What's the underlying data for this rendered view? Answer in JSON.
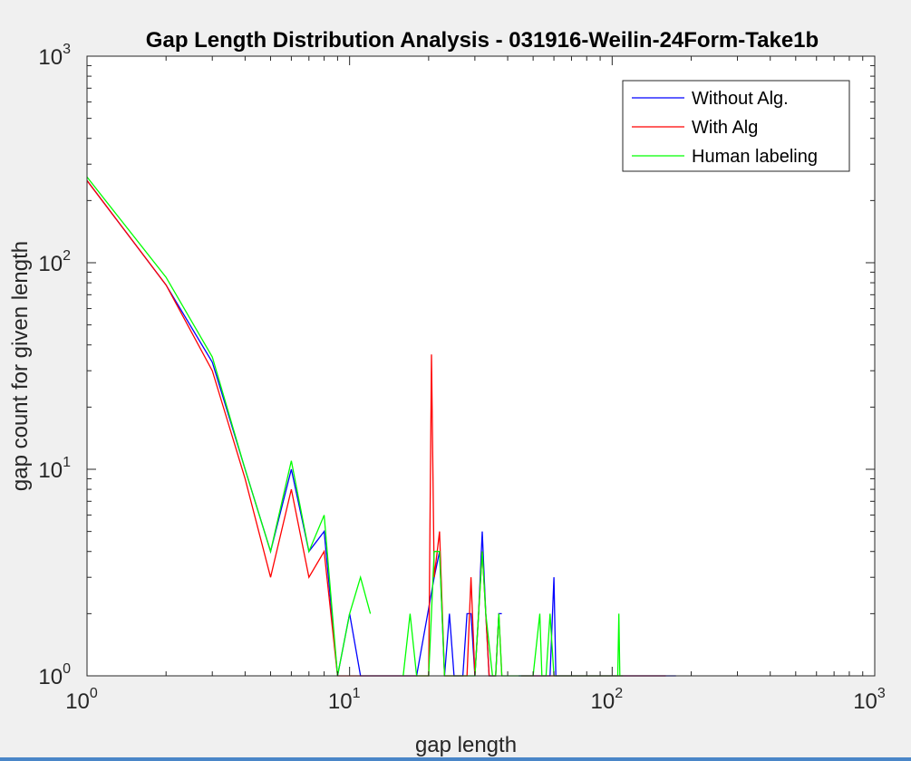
{
  "chart_data": {
    "type": "line",
    "title": "Gap Length Distribution Analysis - 031916-Weilin-24Form-Take1b",
    "xlabel": "gap length",
    "ylabel": "gap count for given length",
    "xscale": "log",
    "yscale": "log",
    "xlim": [
      1,
      1000
    ],
    "ylim": [
      1,
      1000
    ],
    "xticks": [
      1,
      10,
      100,
      1000
    ],
    "yticks": [
      1,
      10,
      100,
      1000
    ],
    "xtick_labels": [
      {
        "base": "10",
        "exp": "0"
      },
      {
        "base": "10",
        "exp": "1"
      },
      {
        "base": "10",
        "exp": "2"
      },
      {
        "base": "10",
        "exp": "3"
      }
    ],
    "ytick_labels": [
      {
        "base": "10",
        "exp": "0"
      },
      {
        "base": "10",
        "exp": "1"
      },
      {
        "base": "10",
        "exp": "2"
      },
      {
        "base": "10",
        "exp": "3"
      }
    ],
    "grid": false,
    "legend": "top-right",
    "series": [
      {
        "name": "Without Alg.",
        "color": "#0000ff",
        "segments": [
          [
            [
              1,
              250
            ],
            [
              2,
              78
            ],
            [
              3,
              33
            ],
            [
              4,
              10
            ],
            [
              5,
              4
            ],
            [
              6,
              10
            ],
            [
              7,
              4
            ],
            [
              8,
              5
            ],
            [
              9,
              1
            ],
            [
              10,
              2
            ],
            [
              11,
              1
            ],
            [
              12,
              1
            ],
            [
              14,
              1
            ],
            [
              16,
              1
            ],
            [
              18,
              1
            ],
            [
              21,
              3
            ],
            [
              22,
              4
            ],
            [
              23,
              1
            ],
            [
              24,
              2
            ],
            [
              25,
              1
            ],
            [
              27,
              1
            ],
            [
              28,
              2
            ],
            [
              29,
              2
            ],
            [
              30,
              1
            ],
            [
              31,
              2
            ],
            [
              32,
              5
            ],
            [
              33,
              2
            ],
            [
              34,
              1
            ],
            [
              36,
              1
            ],
            [
              37,
              2
            ],
            [
              38,
              2
            ]
          ],
          [
            [
              44,
              1
            ],
            [
              48,
              1
            ],
            [
              52,
              1
            ],
            [
              55,
              1
            ],
            [
              58,
              1
            ],
            [
              60,
              3
            ],
            [
              61,
              1
            ],
            [
              65,
              1
            ],
            [
              75,
              1
            ],
            [
              100,
              1
            ],
            [
              140,
              1
            ],
            [
              175,
              1
            ]
          ]
        ]
      },
      {
        "name": "With Alg",
        "color": "#ff0000",
        "segments": [
          [
            [
              1,
              250
            ],
            [
              2,
              78
            ],
            [
              3,
              30
            ],
            [
              4,
              9
            ],
            [
              5,
              3
            ],
            [
              6,
              8
            ],
            [
              7,
              3
            ],
            [
              8,
              4
            ],
            [
              9,
              1
            ],
            [
              10,
              1
            ],
            [
              11,
              1
            ],
            [
              12,
              1
            ],
            [
              14,
              1
            ],
            [
              16,
              1
            ],
            [
              18,
              1
            ],
            [
              20,
              1
            ],
            [
              20.5,
              36
            ],
            [
              21,
              3
            ],
            [
              22,
              5
            ],
            [
              23,
              1
            ],
            [
              25,
              1
            ],
            [
              27,
              1
            ],
            [
              28,
              1
            ],
            [
              29,
              3
            ],
            [
              30,
              1
            ],
            [
              32,
              4
            ],
            [
              33,
              2
            ],
            [
              34,
              1
            ],
            [
              36,
              1
            ],
            [
              37,
              2
            ],
            [
              38,
              1
            ]
          ],
          [
            [
              45,
              1
            ],
            [
              50,
              1
            ],
            [
              55,
              1
            ],
            [
              60,
              1
            ],
            [
              70,
              1
            ],
            [
              100,
              1
            ],
            [
              160,
              1
            ]
          ]
        ]
      },
      {
        "name": "Human labeling",
        "color": "#00ff00",
        "segments": [
          [
            [
              1,
              260
            ],
            [
              2,
              85
            ],
            [
              3,
              35
            ],
            [
              4,
              10
            ],
            [
              5,
              4
            ],
            [
              6,
              11
            ],
            [
              7,
              4
            ],
            [
              8,
              6
            ],
            [
              9,
              1
            ],
            [
              10,
              2
            ],
            [
              11,
              3
            ],
            [
              12,
              2
            ]
          ],
          [
            [
              16,
              1
            ],
            [
              17,
              2
            ],
            [
              18,
              1
            ],
            [
              19,
              1
            ],
            [
              20,
              1
            ],
            [
              21,
              4
            ],
            [
              22,
              4
            ],
            [
              23,
              1
            ],
            [
              24,
              1
            ],
            [
              25,
              1
            ],
            [
              27,
              1
            ],
            [
              28,
              1
            ],
            [
              29,
              1
            ],
            [
              30,
              1
            ],
            [
              31,
              2
            ],
            [
              32,
              4
            ],
            [
              33,
              2
            ],
            [
              35,
              1
            ],
            [
              36,
              1
            ],
            [
              37,
              2
            ],
            [
              38,
              1
            ],
            [
              40,
              1
            ],
            [
              45,
              1
            ],
            [
              50,
              1
            ],
            [
              53,
              2
            ],
            [
              54,
              1
            ],
            [
              56,
              1
            ],
            [
              58,
              2
            ],
            [
              60,
              1
            ],
            [
              62,
              1
            ],
            [
              70,
              1
            ],
            [
              80,
              1
            ],
            [
              100,
              1
            ],
            [
              105,
              1
            ],
            [
              106,
              2
            ],
            [
              107,
              1
            ],
            [
              110,
              1
            ]
          ]
        ]
      }
    ]
  }
}
